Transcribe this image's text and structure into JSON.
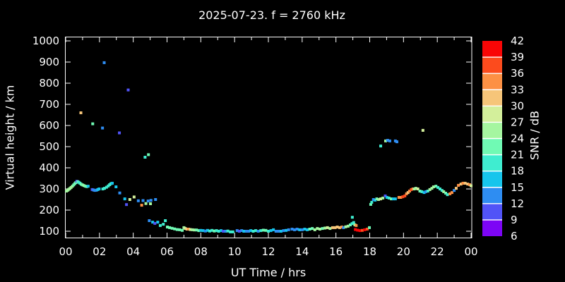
{
  "title": "2025-07-23. f = 2760 kHz",
  "colors": {
    "background": "#000000",
    "foreground": "#ffffff"
  },
  "chart_data": {
    "type": "scatter",
    "title": "2025-07-23. f = 2760 kHz",
    "xlabel": "UT Time / hrs",
    "ylabel": "Virtual height / km",
    "xlim_hrs": [
      0,
      24
    ],
    "x_tick_step_hrs": 2,
    "x_minor_tick_step_hrs": 1,
    "x_tick_labels": [
      "00",
      "02",
      "04",
      "06",
      "08",
      "10",
      "12",
      "14",
      "16",
      "18",
      "20",
      "22",
      "00"
    ],
    "y_ticks_km": [
      100,
      200,
      300,
      400,
      500,
      600,
      700,
      800,
      900,
      1000
    ],
    "grid": "off",
    "marker": "square",
    "colorbar": {
      "label": "SNR / dB",
      "tick_values_top_to_bottom": [
        42,
        39,
        36,
        33,
        30,
        27,
        24,
        21,
        18,
        15,
        12,
        9,
        6
      ],
      "segment_colors_top_to_bottom": [
        "#f90606",
        "#fc4b1d",
        "#fd9044",
        "#f6c579",
        "#d3ef9b",
        "#a5f6a0",
        "#70fab4",
        "#3fedd0",
        "#17c5ec",
        "#2e8df2",
        "#5153f7",
        "#7d05f5"
      ],
      "divider_color": "#ffffff"
    },
    "points_t_h_snr": [
      [
        0.05,
        290,
        25
      ],
      [
        0.12,
        294,
        25
      ],
      [
        0.18,
        298,
        25
      ],
      [
        0.25,
        302,
        25
      ],
      [
        0.32,
        307,
        25
      ],
      [
        0.4,
        313,
        24
      ],
      [
        0.47,
        319,
        23
      ],
      [
        0.54,
        325,
        22
      ],
      [
        0.6,
        330,
        22
      ],
      [
        0.66,
        336,
        10
      ],
      [
        0.72,
        334,
        22
      ],
      [
        0.78,
        331,
        19
      ],
      [
        0.85,
        327,
        19
      ],
      [
        0.92,
        322,
        22
      ],
      [
        1.0,
        319,
        22
      ],
      [
        1.08,
        316,
        25
      ],
      [
        1.16,
        313,
        22
      ],
      [
        1.25,
        311,
        22
      ],
      [
        1.33,
        313,
        16
      ],
      [
        1.57,
        297,
        10
      ],
      [
        1.65,
        295,
        13
      ],
      [
        1.73,
        293,
        13
      ],
      [
        1.82,
        294,
        13
      ],
      [
        1.9,
        297,
        16
      ],
      [
        1.98,
        300,
        16
      ],
      [
        2.2,
        300,
        19
      ],
      [
        2.3,
        303,
        19
      ],
      [
        2.42,
        308,
        19
      ],
      [
        2.52,
        314,
        19
      ],
      [
        2.6,
        320,
        19
      ],
      [
        2.68,
        325,
        19
      ],
      [
        2.76,
        327,
        16
      ],
      [
        2.98,
        310,
        16
      ],
      [
        3.2,
        281,
        13
      ],
      [
        3.5,
        253,
        16
      ],
      [
        3.6,
        226,
        10
      ],
      [
        3.8,
        250,
        28
      ],
      [
        4.05,
        262,
        28
      ],
      [
        4.3,
        244,
        13
      ],
      [
        4.5,
        223,
        34
      ],
      [
        4.58,
        245,
        13
      ],
      [
        4.75,
        231,
        25
      ],
      [
        4.88,
        243,
        13
      ],
      [
        5.02,
        230,
        25
      ],
      [
        5.05,
        246,
        13
      ],
      [
        5.32,
        250,
        13
      ],
      [
        0.9,
        660,
        31
      ],
      [
        1.6,
        608,
        22
      ],
      [
        2.18,
        588,
        13
      ],
      [
        2.28,
        897,
        13
      ],
      [
        3.18,
        565,
        10
      ],
      [
        3.7,
        768,
        10
      ],
      [
        4.7,
        450,
        19
      ],
      [
        4.9,
        462,
        22
      ],
      [
        4.95,
        150,
        13
      ],
      [
        5.15,
        143,
        16
      ],
      [
        5.28,
        137,
        10
      ],
      [
        5.45,
        143,
        16
      ],
      [
        5.6,
        127,
        19
      ],
      [
        5.78,
        133,
        19
      ],
      [
        5.9,
        150,
        19
      ],
      [
        6.02,
        120,
        22
      ],
      [
        6.15,
        117,
        22
      ],
      [
        6.3,
        114,
        22
      ],
      [
        6.45,
        111,
        22
      ],
      [
        6.6,
        108,
        22
      ],
      [
        6.75,
        107,
        22
      ],
      [
        6.9,
        104,
        22
      ],
      [
        7.0,
        117,
        25
      ],
      [
        7.08,
        113,
        28
      ],
      [
        7.18,
        110,
        31
      ],
      [
        7.28,
        110,
        34
      ],
      [
        7.38,
        108,
        28
      ],
      [
        7.5,
        107,
        25
      ],
      [
        7.62,
        106,
        25
      ],
      [
        7.75,
        106,
        22
      ],
      [
        7.88,
        103,
        22
      ],
      [
        8.0,
        104,
        16
      ],
      [
        8.13,
        103,
        16
      ],
      [
        8.27,
        101,
        13
      ],
      [
        8.4,
        104,
        16
      ],
      [
        8.53,
        101,
        19
      ],
      [
        8.66,
        104,
        19
      ],
      [
        8.8,
        101,
        22
      ],
      [
        8.93,
        103,
        19
      ],
      [
        9.06,
        100,
        19
      ],
      [
        9.2,
        103,
        16
      ],
      [
        9.33,
        100,
        10
      ],
      [
        9.46,
        100,
        13
      ],
      [
        9.6,
        101,
        19
      ],
      [
        9.75,
        97,
        19
      ],
      [
        9.9,
        97,
        19
      ],
      [
        10.15,
        103,
        13
      ],
      [
        10.28,
        100,
        10
      ],
      [
        10.42,
        103,
        13
      ],
      [
        10.55,
        100,
        16
      ],
      [
        10.7,
        100,
        13
      ],
      [
        10.83,
        100,
        13
      ],
      [
        10.96,
        103,
        16
      ],
      [
        11.1,
        100,
        19
      ],
      [
        11.25,
        103,
        19
      ],
      [
        11.4,
        100,
        13
      ],
      [
        11.55,
        103,
        19
      ],
      [
        11.7,
        105,
        22
      ],
      [
        11.85,
        104,
        22
      ],
      [
        12.0,
        100,
        19
      ],
      [
        12.15,
        103,
        16
      ],
      [
        12.3,
        107,
        16
      ],
      [
        12.45,
        100,
        13
      ],
      [
        12.6,
        100,
        13
      ],
      [
        12.75,
        100,
        16
      ],
      [
        12.9,
        103,
        13
      ],
      [
        13.05,
        104,
        16
      ],
      [
        13.2,
        107,
        13
      ],
      [
        13.4,
        110,
        13
      ],
      [
        13.55,
        107,
        13
      ],
      [
        13.7,
        110,
        13
      ],
      [
        13.85,
        107,
        16
      ],
      [
        14.0,
        107,
        13
      ],
      [
        14.15,
        110,
        16
      ],
      [
        14.3,
        107,
        16
      ],
      [
        14.45,
        110,
        22
      ],
      [
        14.6,
        113,
        22
      ],
      [
        14.75,
        107,
        25
      ],
      [
        14.9,
        113,
        25
      ],
      [
        15.05,
        110,
        25
      ],
      [
        15.2,
        113,
        22
      ],
      [
        15.35,
        115,
        25
      ],
      [
        15.5,
        117,
        28
      ],
      [
        15.65,
        113,
        25
      ],
      [
        15.8,
        117,
        31
      ],
      [
        15.95,
        117,
        31
      ],
      [
        16.08,
        120,
        31
      ],
      [
        16.22,
        117,
        31
      ],
      [
        16.35,
        120,
        34
      ],
      [
        16.45,
        117,
        13
      ],
      [
        16.58,
        121,
        25
      ],
      [
        16.72,
        124,
        25
      ],
      [
        16.85,
        130,
        22
      ],
      [
        16.95,
        136,
        19
      ],
      [
        16.97,
        166,
        19
      ],
      [
        17.05,
        141,
        19
      ],
      [
        17.12,
        130,
        25
      ],
      [
        17.2,
        127,
        34
      ],
      [
        17.15,
        108,
        40
      ],
      [
        17.28,
        105,
        40
      ],
      [
        17.42,
        103,
        40
      ],
      [
        17.56,
        104,
        37
      ],
      [
        17.7,
        107,
        40
      ],
      [
        17.85,
        110,
        37
      ],
      [
        17.98,
        117,
        22
      ],
      [
        18.06,
        227,
        22
      ],
      [
        18.12,
        237,
        19
      ],
      [
        18.22,
        250,
        13
      ],
      [
        18.32,
        247,
        16
      ],
      [
        18.42,
        253,
        22
      ],
      [
        18.52,
        250,
        25
      ],
      [
        18.65,
        253,
        28
      ],
      [
        18.78,
        257,
        25
      ],
      [
        18.92,
        267,
        10
      ],
      [
        19.02,
        260,
        16
      ],
      [
        19.14,
        257,
        19
      ],
      [
        19.28,
        253,
        22
      ],
      [
        19.4,
        253,
        16
      ],
      [
        19.52,
        253,
        16
      ],
      [
        19.73,
        260,
        34
      ],
      [
        19.84,
        260,
        34
      ],
      [
        19.96,
        263,
        37
      ],
      [
        20.08,
        267,
        37
      ],
      [
        20.18,
        277,
        34
      ],
      [
        20.27,
        283,
        31
      ],
      [
        20.36,
        290,
        34
      ],
      [
        20.46,
        297,
        37
      ],
      [
        20.56,
        300,
        34
      ],
      [
        20.64,
        300,
        25
      ],
      [
        20.73,
        303,
        25
      ],
      [
        20.85,
        300,
        28
      ],
      [
        20.97,
        290,
        22
      ],
      [
        21.09,
        287,
        19
      ],
      [
        21.22,
        283,
        16
      ],
      [
        21.32,
        287,
        13
      ],
      [
        21.44,
        290,
        19
      ],
      [
        21.56,
        297,
        25
      ],
      [
        21.68,
        303,
        25
      ],
      [
        21.78,
        310,
        25
      ],
      [
        21.92,
        313,
        22
      ],
      [
        22.04,
        307,
        19
      ],
      [
        22.16,
        300,
        19
      ],
      [
        22.28,
        293,
        19
      ],
      [
        22.38,
        287,
        25
      ],
      [
        22.5,
        280,
        22
      ],
      [
        22.6,
        273,
        19
      ],
      [
        22.75,
        277,
        34
      ],
      [
        22.87,
        283,
        34
      ],
      [
        23.0,
        293,
        13
      ],
      [
        23.12,
        303,
        31
      ],
      [
        23.25,
        317,
        34
      ],
      [
        23.4,
        323,
        31
      ],
      [
        23.52,
        327,
        34
      ],
      [
        23.65,
        327,
        31
      ],
      [
        23.8,
        323,
        31
      ],
      [
        23.92,
        320,
        34
      ],
      [
        24.0,
        315,
        28
      ],
      [
        18.65,
        503,
        19
      ],
      [
        18.94,
        527,
        25
      ],
      [
        19.06,
        530,
        13
      ],
      [
        19.19,
        527,
        13
      ],
      [
        19.52,
        527,
        13
      ],
      [
        19.61,
        523,
        13
      ],
      [
        21.15,
        577,
        28
      ]
    ]
  }
}
